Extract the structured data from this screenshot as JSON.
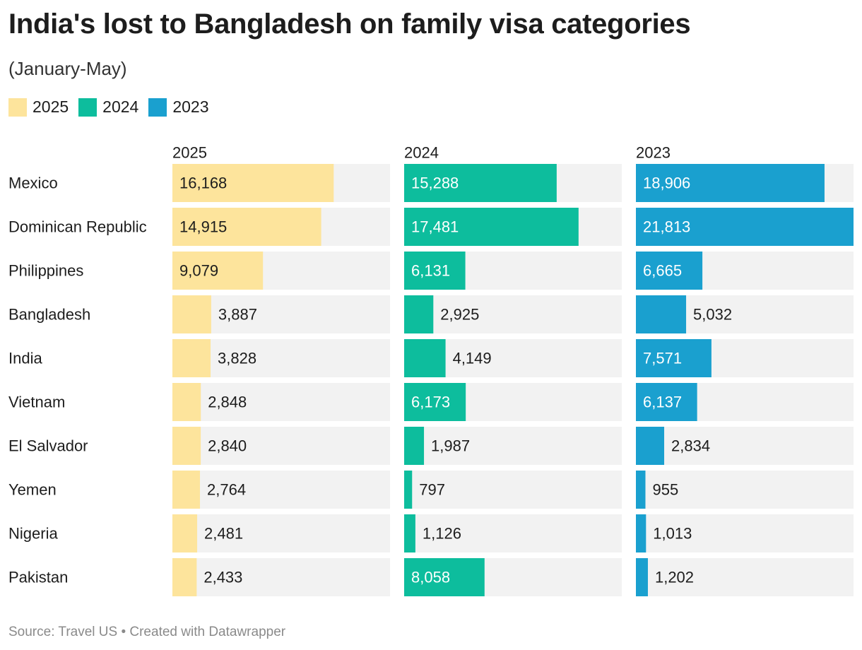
{
  "title": "India's lost to Bangladesh on family visa categories",
  "subtitle": "(January-May)",
  "source": "Source: Travel US • Created with Datawrapper",
  "colors": {
    "2025": "#fde49c",
    "2024": "#0dbd9d",
    "2023": "#1aa0cf",
    "track": "#f2f2f2"
  },
  "legend": [
    {
      "label": "2025",
      "color": "#fde49c"
    },
    {
      "label": "2024",
      "color": "#0dbd9d"
    },
    {
      "label": "2023",
      "color": "#1aa0cf"
    }
  ],
  "chart_data": {
    "type": "bar",
    "title": "India's lost to Bangladesh on family visa categories",
    "subtitle": "(January-May)",
    "categories": [
      "Mexico",
      "Dominican Republic",
      "Philippines",
      "Bangladesh",
      "India",
      "Vietnam",
      "El Salvador",
      "Yemen",
      "Nigeria",
      "Pakistan"
    ],
    "series": [
      {
        "name": "2025",
        "color": "#fde49c",
        "values": [
          16168,
          14915,
          9079,
          3887,
          3828,
          2848,
          2840,
          2764,
          2481,
          2433
        ],
        "labels": [
          "16,168",
          "14,915",
          "9,079",
          "3,887",
          "3,828",
          "2,848",
          "2,840",
          "2,764",
          "2,481",
          "2,433"
        ]
      },
      {
        "name": "2024",
        "color": "#0dbd9d",
        "values": [
          15288,
          17481,
          6131,
          2925,
          4149,
          6173,
          1987,
          797,
          1126,
          8058
        ],
        "labels": [
          "15,288",
          "17,481",
          "6,131",
          "2,925",
          "4,149",
          "6,173",
          "1,987",
          "797",
          "1,126",
          "8,058"
        ]
      },
      {
        "name": "2023",
        "color": "#1aa0cf",
        "values": [
          18906,
          21813,
          6665,
          5032,
          7571,
          6137,
          2834,
          955,
          1013,
          1202
        ],
        "labels": [
          "18,906",
          "21,813",
          "6,665",
          "5,032",
          "7,571",
          "6,137",
          "2,834",
          "955",
          "1,013",
          "1,202"
        ]
      }
    ],
    "xlim": [
      0,
      21813
    ],
    "legend_position": "top-left",
    "grid": false
  }
}
